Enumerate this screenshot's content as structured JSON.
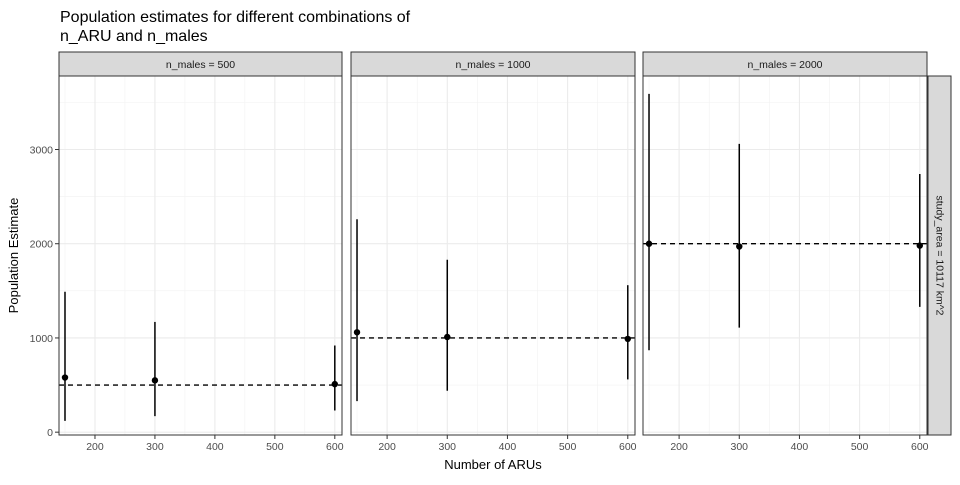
{
  "chart_data": {
    "type": "scatter",
    "title": "Population estimates for different combinations of\nn_ARU and n_males",
    "xlabel": "Number of ARUs",
    "ylabel": "Population Estimate",
    "xlim": [
      140,
      612
    ],
    "ylim": [
      -30,
      3780
    ],
    "x_ticks": [
      200,
      300,
      400,
      500,
      600
    ],
    "y_ticks": [
      0,
      1000,
      2000,
      3000
    ],
    "grid": true,
    "strip_right": "study_area = 10117 km^2",
    "panels": [
      {
        "label": "n_males = 500",
        "reference": 500,
        "points": [
          {
            "x": 150,
            "y": 580,
            "low": 120,
            "high": 1490
          },
          {
            "x": 300,
            "y": 550,
            "low": 170,
            "high": 1170
          },
          {
            "x": 600,
            "y": 510,
            "low": 230,
            "high": 920
          }
        ]
      },
      {
        "label": "n_males = 1000",
        "reference": 1000,
        "points": [
          {
            "x": 150,
            "y": 1060,
            "low": 330,
            "high": 2260
          },
          {
            "x": 300,
            "y": 1010,
            "low": 440,
            "high": 1830
          },
          {
            "x": 600,
            "y": 990,
            "low": 560,
            "high": 1560
          }
        ]
      },
      {
        "label": "n_males = 2000",
        "reference": 2000,
        "points": [
          {
            "x": 150,
            "y": 2000,
            "low": 870,
            "high": 3590
          },
          {
            "x": 300,
            "y": 1970,
            "low": 1110,
            "high": 3060
          },
          {
            "x": 600,
            "y": 1980,
            "low": 1330,
            "high": 2740
          }
        ]
      }
    ]
  }
}
